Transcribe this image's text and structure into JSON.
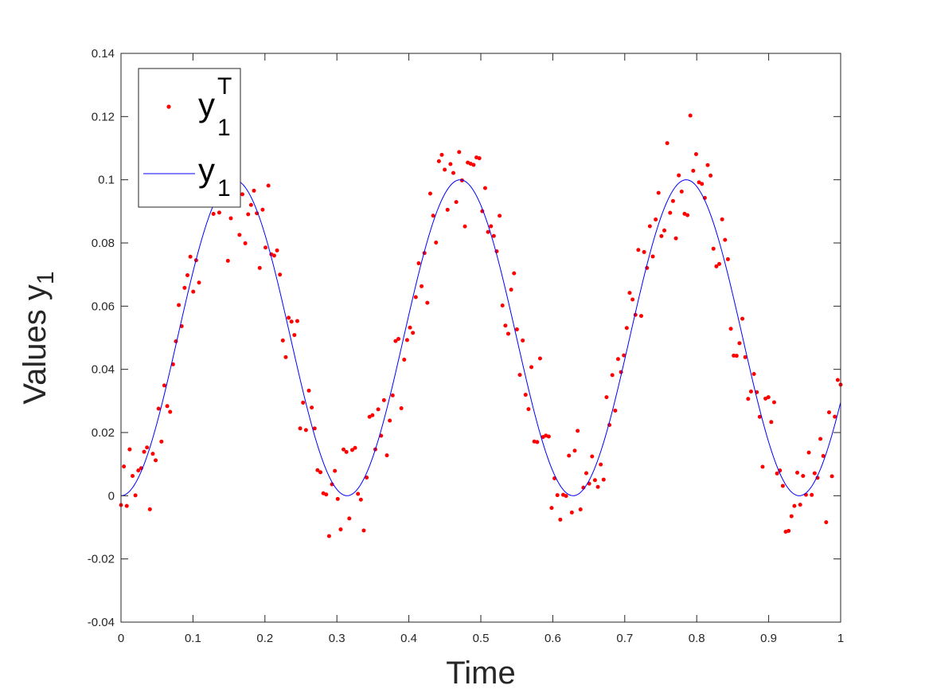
{
  "chart_data": {
    "type": "scatter",
    "xlabel": "Time",
    "ylabel": "Values y",
    "ylabel_sub": "1",
    "xlim": [
      0,
      1
    ],
    "ylim": [
      -0.04,
      0.14
    ],
    "xticks": [
      "0",
      "0.1",
      "0.2",
      "0.3",
      "0.4",
      "0.5",
      "0.6",
      "0.7",
      "0.8",
      "0.9",
      "1"
    ],
    "yticks": [
      "-0.04",
      "-0.02",
      "0",
      "0.02",
      "0.04",
      "0.06",
      "0.08",
      "0.1",
      "0.12",
      "0.14"
    ],
    "grid": false,
    "legend_position": "top-left",
    "series": [
      {
        "name": "y",
        "name_sub": "1",
        "name_sup": "T",
        "style": "points",
        "color": "#ff0000",
        "count": 250,
        "model": "noisy samples around y = 0.05 - 0.05*cos(20*t)",
        "noise_sd": 0.0095,
        "x_range": [
          0,
          1
        ],
        "shown_extremes": {
          "max": 0.121,
          "min": -0.02
        }
      },
      {
        "name": "y",
        "name_sub": "1",
        "style": "line",
        "color": "#0000ff",
        "function": "0.05 - 0.05*cos(20*t)",
        "x_range": [
          0,
          1
        ],
        "sample_points": {
          "x": [
            0,
            0.05,
            0.1,
            0.157,
            0.2,
            0.25,
            0.314,
            0.35,
            0.4,
            0.471,
            0.5,
            0.55,
            0.628,
            0.7,
            0.75,
            0.785,
            0.85,
            0.9,
            0.942,
            1
          ],
          "y": [
            0,
            0.023,
            0.071,
            0.1,
            0.083,
            0.036,
            0,
            0.013,
            0.057,
            0.1,
            0.092,
            0.05,
            0,
            0.042,
            0.089,
            0.1,
            0.066,
            0.016,
            0,
            0.029
          ]
        }
      }
    ]
  }
}
